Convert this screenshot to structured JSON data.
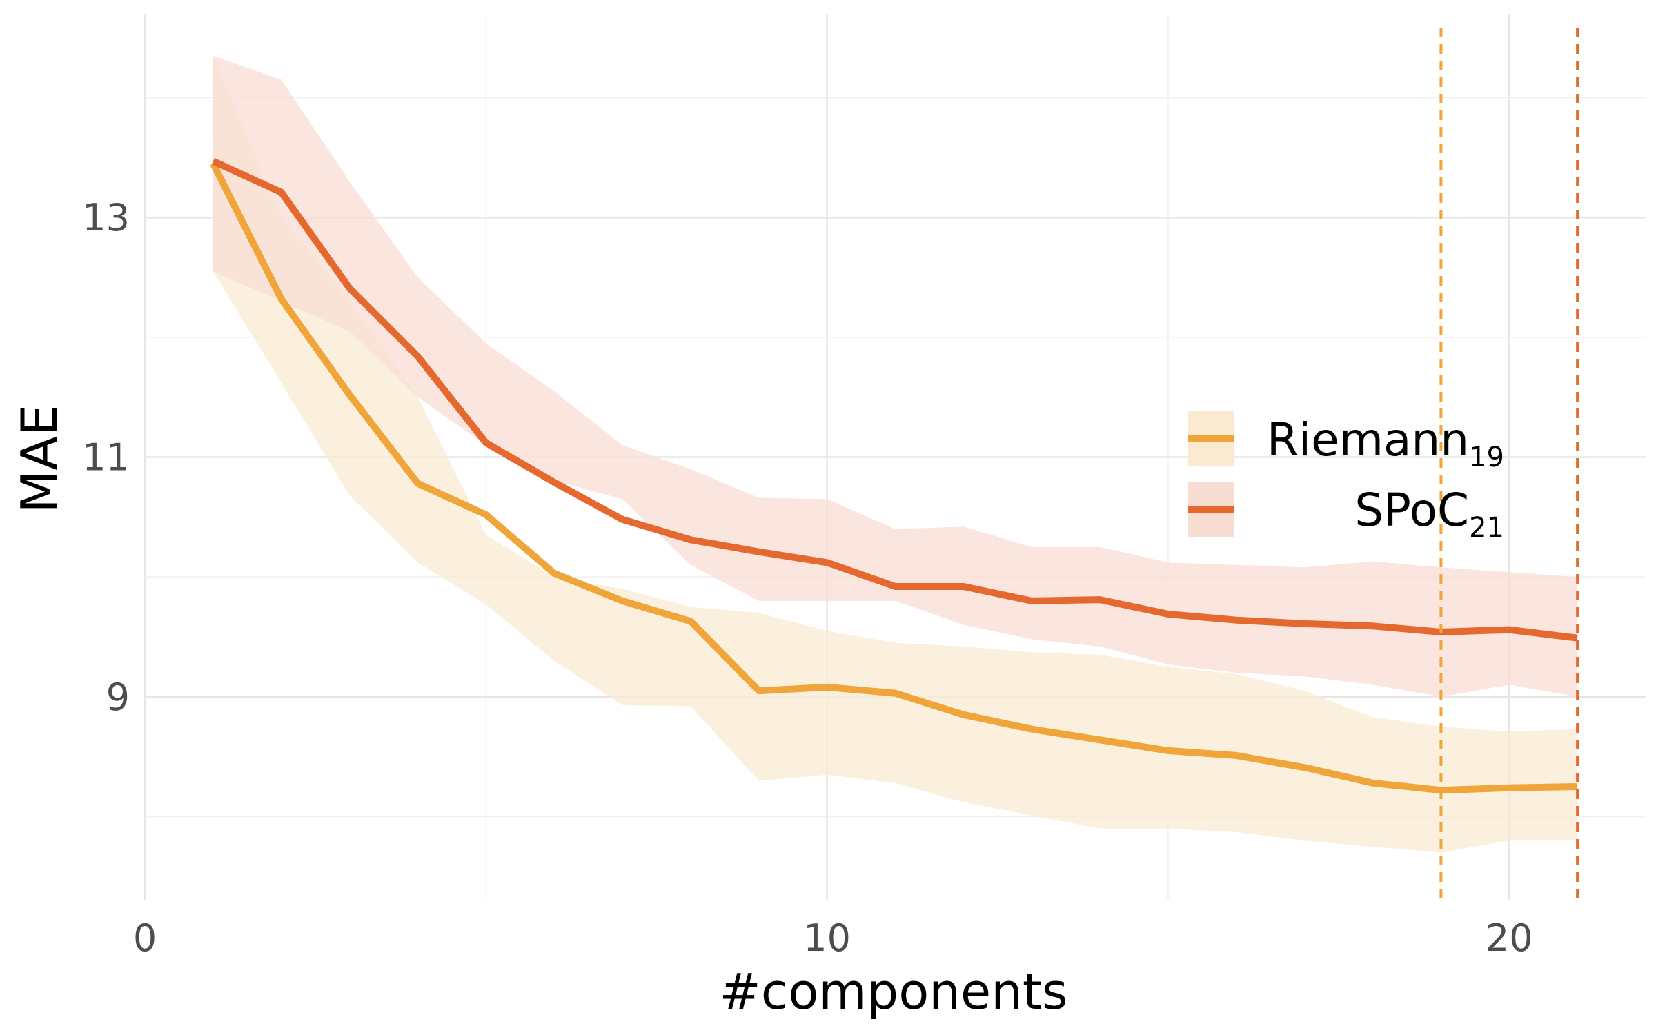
{
  "chart_data": {
    "type": "line",
    "xlabel": "#components",
    "ylabel": "MAE",
    "xlim": [
      0,
      22
    ],
    "ylim": [
      7.3,
      14.7
    ],
    "x_ticks": [
      0,
      10,
      20
    ],
    "y_ticks": [
      9,
      11,
      13
    ],
    "grid": true,
    "legend_position": "right",
    "series": [
      {
        "name": "Riemann",
        "name_sub": "19",
        "color": "#EFA53A",
        "band_color": "#FAEAD2",
        "x": [
          1,
          2,
          3,
          4,
          5,
          6,
          7,
          8,
          9,
          10,
          11,
          12,
          13,
          14,
          15,
          16,
          17,
          18,
          19,
          20,
          21
        ],
        "values": [
          13.45,
          12.32,
          11.52,
          10.78,
          10.52,
          10.03,
          9.8,
          9.63,
          9.05,
          9.08,
          9.03,
          8.85,
          8.73,
          8.64,
          8.55,
          8.51,
          8.41,
          8.28,
          8.22,
          8.24,
          8.25
        ],
        "upper": [
          14.35,
          13.0,
          12.3,
          11.5,
          10.35,
          10.0,
          9.9,
          9.75,
          9.7,
          9.55,
          9.45,
          9.42,
          9.37,
          9.35,
          9.25,
          9.19,
          9.05,
          8.83,
          8.75,
          8.71,
          8.73
        ],
        "lower": [
          12.55,
          11.62,
          10.68,
          10.12,
          9.77,
          9.3,
          8.93,
          8.92,
          8.3,
          8.35,
          8.28,
          8.12,
          8.01,
          7.9,
          7.9,
          7.87,
          7.8,
          7.75,
          7.7,
          7.8,
          7.8
        ],
        "vline_x": 19
      },
      {
        "name": "SPoC",
        "name_sub": "21",
        "color": "#E5692E",
        "band_color": "#F8DDD3",
        "x": [
          1,
          2,
          3,
          4,
          5,
          6,
          7,
          8,
          9,
          10,
          11,
          12,
          13,
          14,
          15,
          16,
          17,
          18,
          19,
          20,
          21
        ],
        "values": [
          13.47,
          13.21,
          12.41,
          11.84,
          11.12,
          10.79,
          10.48,
          10.31,
          10.21,
          10.12,
          9.92,
          9.92,
          9.8,
          9.81,
          9.69,
          9.64,
          9.61,
          9.59,
          9.54,
          9.56,
          9.49
        ],
        "upper": [
          14.35,
          14.15,
          13.3,
          12.5,
          11.95,
          11.55,
          11.1,
          10.9,
          10.66,
          10.65,
          10.4,
          10.42,
          10.25,
          10.25,
          10.12,
          10.1,
          10.08,
          10.13,
          10.08,
          10.04,
          10.0
        ],
        "lower": [
          12.55,
          12.3,
          12.05,
          11.5,
          11.1,
          10.8,
          10.65,
          10.1,
          9.8,
          9.8,
          9.8,
          9.6,
          9.48,
          9.42,
          9.27,
          9.2,
          9.17,
          9.1,
          9.0,
          9.1,
          9.0
        ],
        "vline_x": 21
      }
    ]
  }
}
